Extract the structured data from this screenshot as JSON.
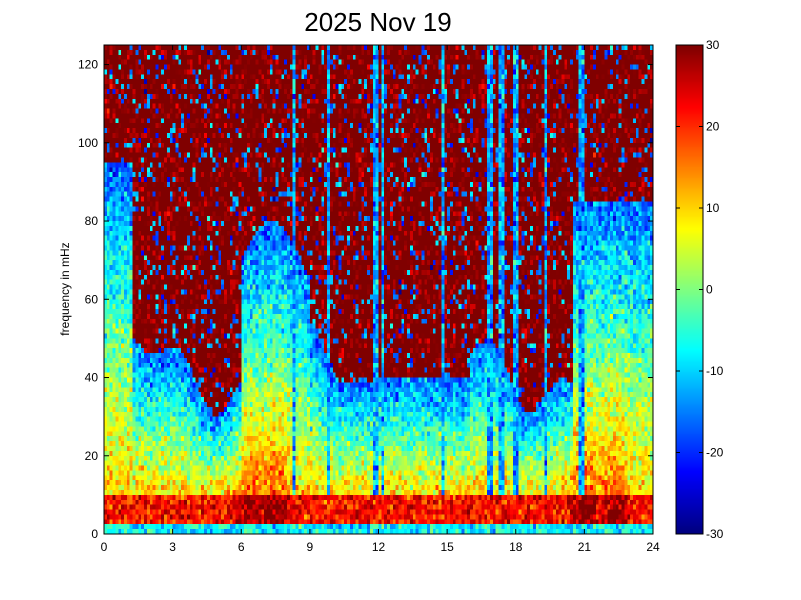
{
  "chart_data": {
    "type": "heatmap",
    "title": "2025 Nov 19",
    "xlabel": "",
    "ylabel": "frequency in mHz",
    "xlim": [
      0,
      24
    ],
    "ylim": [
      0,
      125
    ],
    "x_ticks": [
      0,
      3,
      6,
      9,
      12,
      15,
      18,
      21,
      24
    ],
    "y_ticks": [
      0,
      20,
      40,
      60,
      80,
      100,
      120
    ],
    "colorbar": {
      "colormap": "jet",
      "clim": [
        -30,
        30
      ],
      "ticks": [
        30,
        20,
        10,
        0,
        -10,
        -20,
        -30
      ]
    },
    "grid": false,
    "time_resolution_hours": 0.125,
    "frequency_resolution_mHz": 1.25,
    "description_fields": {
      "quiet_background_db": 30,
      "bright_vertical_streaks_hours": [
        8.3,
        9.8,
        11.9,
        12.2,
        14.8,
        16.9,
        17.4,
        18.0,
        19.3,
        20.9
      ]
    },
    "features": {
      "high_freq_level_db": 30,
      "low_freq_level_db": 10,
      "band_0_2mHz_db": -8,
      "band_2_10mHz_db": 28,
      "disturbance_hours": [
        6.5,
        7.5,
        21.0,
        22.3
      ]
    }
  }
}
